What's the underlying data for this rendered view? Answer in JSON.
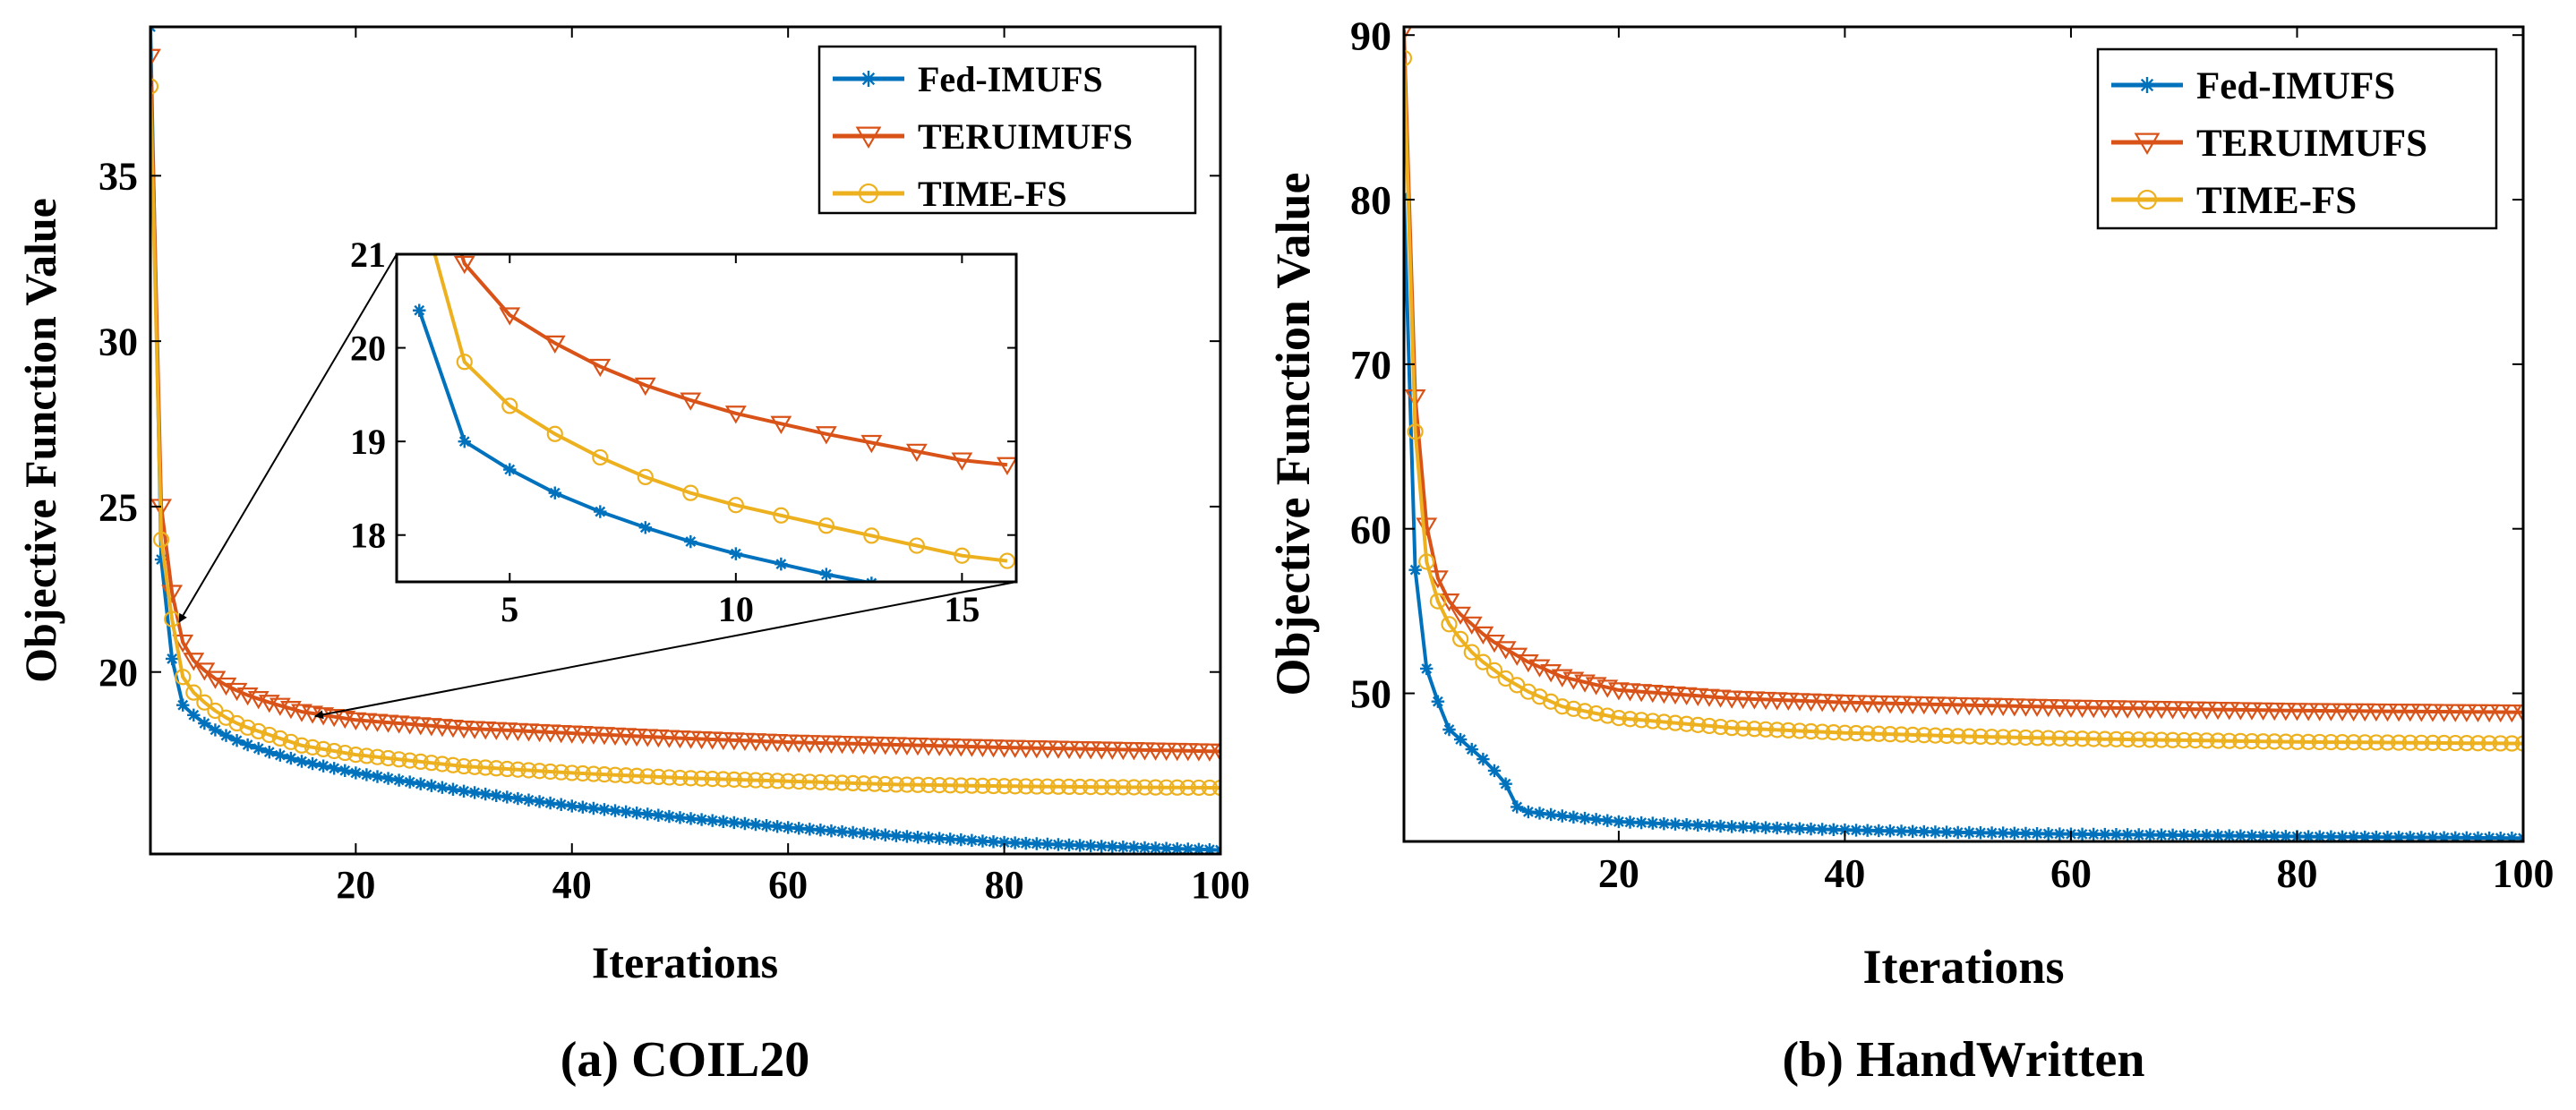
{
  "colors": {
    "fed": "#0072BD",
    "teru": "#D95319",
    "time": "#EDB120",
    "axis": "#000000"
  },
  "chart_data": [
    {
      "id": "coil20",
      "type": "line",
      "caption": "(a) COIL20",
      "xlabel": "Iterations",
      "ylabel": "Objective Function Value",
      "xlim": [
        1,
        100
      ],
      "ylim": [
        14.5,
        39.5
      ],
      "xticks": [
        20,
        40,
        60,
        80,
        100
      ],
      "yticks": [
        20,
        25,
        30,
        35
      ],
      "legend": {
        "position": "top-right"
      },
      "series": [
        {
          "name": "Fed-IMUFS",
          "marker": "star",
          "color": "#0072BD",
          "points": [
            [
              1,
              39.5
            ],
            [
              2,
              23.4
            ],
            [
              3,
              20.4
            ],
            [
              4,
              19.0
            ],
            [
              5,
              18.7
            ],
            [
              6,
              18.45
            ],
            [
              7,
              18.25
            ],
            [
              8,
              18.08
            ],
            [
              9,
              17.93
            ],
            [
              10,
              17.8
            ],
            [
              12,
              17.58
            ],
            [
              15,
              17.3
            ],
            [
              20,
              16.95
            ],
            [
              30,
              16.4
            ],
            [
              40,
              15.95
            ],
            [
              50,
              15.6
            ],
            [
              60,
              15.3
            ],
            [
              70,
              15.05
            ],
            [
              80,
              14.85
            ],
            [
              90,
              14.72
            ],
            [
              100,
              14.62
            ]
          ]
        },
        {
          "name": "TERUIMUFS",
          "marker": "triangle-down",
          "color": "#D95319",
          "points": [
            [
              1,
              38.6
            ],
            [
              2,
              25.0
            ],
            [
              3,
              22.4
            ],
            [
              4,
              20.9
            ],
            [
              5,
              20.35
            ],
            [
              6,
              20.05
            ],
            [
              7,
              19.8
            ],
            [
              8,
              19.6
            ],
            [
              9,
              19.44
            ],
            [
              10,
              19.3
            ],
            [
              12,
              19.08
            ],
            [
              15,
              18.8
            ],
            [
              20,
              18.55
            ],
            [
              30,
              18.3
            ],
            [
              40,
              18.15
            ],
            [
              50,
              18.0
            ],
            [
              60,
              17.88
            ],
            [
              70,
              17.8
            ],
            [
              80,
              17.72
            ],
            [
              90,
              17.66
            ],
            [
              100,
              17.6
            ]
          ]
        },
        {
          "name": "TIME-FS",
          "marker": "circle",
          "color": "#EDB120",
          "points": [
            [
              1,
              37.7
            ],
            [
              2,
              24.0
            ],
            [
              3,
              21.6
            ],
            [
              4,
              19.85
            ],
            [
              5,
              19.38
            ],
            [
              6,
              19.08
            ],
            [
              7,
              18.83
            ],
            [
              8,
              18.62
            ],
            [
              9,
              18.45
            ],
            [
              10,
              18.32
            ],
            [
              12,
              18.1
            ],
            [
              15,
              17.78
            ],
            [
              20,
              17.5
            ],
            [
              30,
              17.15
            ],
            [
              40,
              16.95
            ],
            [
              50,
              16.8
            ],
            [
              60,
              16.7
            ],
            [
              70,
              16.6
            ],
            [
              80,
              16.55
            ],
            [
              90,
              16.52
            ],
            [
              100,
              16.5
            ]
          ]
        }
      ],
      "inset": {
        "xlim": [
          2.5,
          16.2
        ],
        "ylim": [
          17.5,
          21.0
        ],
        "xticks": [
          5,
          10,
          15
        ],
        "yticks": [
          18,
          19,
          20,
          21
        ],
        "zoom_region": {
          "x": [
            3,
            16
          ],
          "y": [
            17.5,
            21
          ]
        }
      }
    },
    {
      "id": "handwritten",
      "type": "line",
      "caption": "(b) HandWritten",
      "xlabel": "Iterations",
      "ylabel": "Objective Function Value",
      "xlim": [
        1,
        100
      ],
      "ylim": [
        41.0,
        90.5
      ],
      "xticks": [
        20,
        40,
        60,
        80,
        100
      ],
      "yticks": [
        50,
        60,
        70,
        80,
        90
      ],
      "legend": {
        "position": "top-right"
      },
      "series": [
        {
          "name": "Fed-IMUFS",
          "marker": "star",
          "color": "#0072BD",
          "points": [
            [
              1,
              80.2
            ],
            [
              2,
              57.5
            ],
            [
              3,
              51.5
            ],
            [
              4,
              49.5
            ],
            [
              5,
              47.8
            ],
            [
              6,
              47.2
            ],
            [
              7,
              46.6
            ],
            [
              8,
              46.0
            ],
            [
              9,
              45.3
            ],
            [
              10,
              44.5
            ],
            [
              11,
              43.1
            ],
            [
              12,
              42.8
            ],
            [
              15,
              42.55
            ],
            [
              20,
              42.2
            ],
            [
              30,
              41.9
            ],
            [
              40,
              41.7
            ],
            [
              50,
              41.55
            ],
            [
              60,
              41.45
            ],
            [
              70,
              41.38
            ],
            [
              80,
              41.3
            ],
            [
              90,
              41.25
            ],
            [
              100,
              41.2
            ]
          ]
        },
        {
          "name": "TERUIMUFS",
          "marker": "triangle-down",
          "color": "#D95319",
          "points": [
            [
              1,
              90.3
            ],
            [
              2,
              68.0
            ],
            [
              3,
              60.2
            ],
            [
              4,
              57.0
            ],
            [
              5,
              55.6
            ],
            [
              6,
              54.8
            ],
            [
              7,
              54.2
            ],
            [
              8,
              53.6
            ],
            [
              9,
              53.1
            ],
            [
              10,
              52.7
            ],
            [
              12,
              51.9
            ],
            [
              15,
              51.0
            ],
            [
              20,
              50.2
            ],
            [
              30,
              49.7
            ],
            [
              40,
              49.45
            ],
            [
              50,
              49.3
            ],
            [
              60,
              49.15
            ],
            [
              70,
              49.05
            ],
            [
              80,
              48.95
            ],
            [
              90,
              48.9
            ],
            [
              100,
              48.85
            ]
          ]
        },
        {
          "name": "TIME-FS",
          "marker": "circle",
          "color": "#EDB120",
          "points": [
            [
              1,
              88.6
            ],
            [
              2,
              65.9
            ],
            [
              3,
              58.0
            ],
            [
              4,
              55.6
            ],
            [
              5,
              54.2
            ],
            [
              6,
              53.3
            ],
            [
              7,
              52.5
            ],
            [
              8,
              51.9
            ],
            [
              9,
              51.4
            ],
            [
              10,
              50.9
            ],
            [
              12,
              50.1
            ],
            [
              15,
              49.2
            ],
            [
              20,
              48.5
            ],
            [
              30,
              47.9
            ],
            [
              40,
              47.6
            ],
            [
              50,
              47.4
            ],
            [
              60,
              47.25
            ],
            [
              70,
              47.15
            ],
            [
              80,
              47.05
            ],
            [
              90,
              47.0
            ],
            [
              100,
              46.95
            ]
          ]
        }
      ]
    }
  ]
}
